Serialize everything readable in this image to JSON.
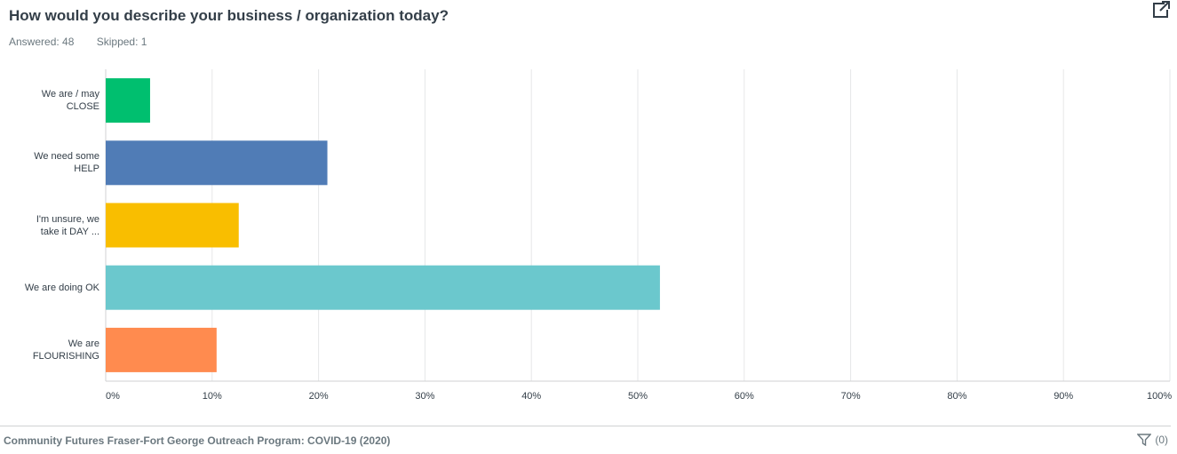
{
  "header": {
    "title": "How would you describe your business / organization today?",
    "answered": "Answered: 48",
    "skipped": "Skipped: 1"
  },
  "icons": {
    "export": "external-link-icon",
    "filter": "filter-icon"
  },
  "footer": {
    "survey_name": "Community Futures Fraser-Fort George Outreach Program: COVID-19 (2020)",
    "filter_count": "(0)"
  },
  "chart_data": {
    "type": "bar",
    "orientation": "horizontal",
    "categories": [
      [
        "We are / may",
        "CLOSE"
      ],
      [
        "We need some",
        "HELP"
      ],
      [
        "I'm unsure, we",
        "take it DAY ..."
      ],
      [
        "We are doing OK"
      ],
      [
        "We are",
        "FLOURISHING"
      ]
    ],
    "values": [
      4.17,
      20.83,
      12.5,
      52.08,
      10.42
    ],
    "colors": [
      "#00bf6f",
      "#507cb6",
      "#f9be00",
      "#6bc8cd",
      "#ff8b4f"
    ],
    "xlim": [
      0,
      100
    ],
    "ticks": [
      "0%",
      "10%",
      "20%",
      "30%",
      "40%",
      "50%",
      "60%",
      "70%",
      "80%",
      "90%",
      "100%"
    ],
    "grid": true,
    "title": "",
    "xlabel": "",
    "ylabel": ""
  }
}
